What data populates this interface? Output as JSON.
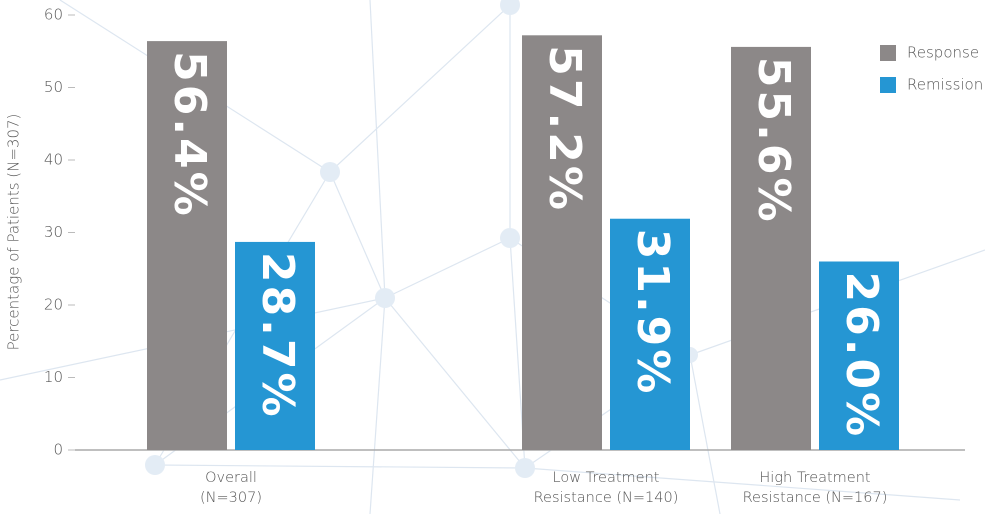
{
  "chart_data": {
    "type": "bar",
    "categories": [
      "Overall\n(N=307)",
      "Low Treatment\nResistance (N=140)",
      "High Treatment\nResistance (N=167)"
    ],
    "series": [
      {
        "name": "Response",
        "color": "#8c8888",
        "values": [
          56.4,
          57.2,
          55.6
        ],
        "value_labels": [
          "56.4%",
          "57.2%",
          "55.6%"
        ]
      },
      {
        "name": "Remission",
        "color": "#2596d3",
        "values": [
          28.7,
          31.9,
          26.0
        ],
        "value_labels": [
          "28.7%",
          "31.9%",
          "26.0%"
        ]
      }
    ],
    "y_label": "Percentage of Patients (N=307)",
    "ylim": [
      0,
      60
    ],
    "yticks": [
      0,
      10,
      20,
      30,
      40,
      50,
      60
    ],
    "legend": "top-right"
  }
}
